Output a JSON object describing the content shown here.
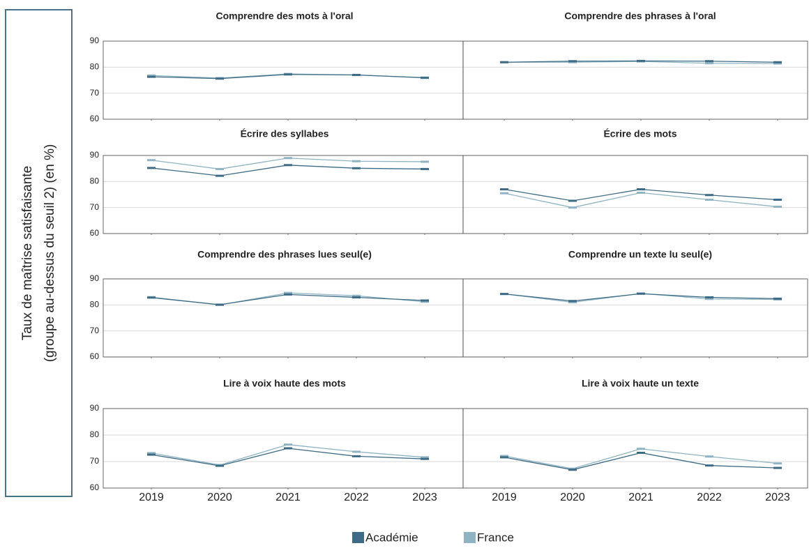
{
  "ylabel": [
    "Taux de maîtrise satisfaisante",
    "(groupe au-dessus du seuil 2) (en %)"
  ],
  "chart_data": [
    {
      "type": "line",
      "title": "Comprendre des mots à l'oral",
      "categories": [
        "2019",
        "2020",
        "2021",
        "2022",
        "2023"
      ],
      "ylim": [
        60,
        90
      ],
      "yticks": [
        60,
        70,
        80,
        90
      ],
      "series": [
        {
          "name": "Académie",
          "color": "#3d6b85",
          "values": [
            76.3,
            75.6,
            77.2,
            77.0,
            75.9
          ]
        },
        {
          "name": "France",
          "color": "#8fb3c2",
          "values": [
            76.8,
            75.8,
            77.4,
            77.0,
            76.0
          ]
        }
      ]
    },
    {
      "type": "line",
      "title": "Comprendre des phrases à l'oral",
      "categories": [
        "2019",
        "2020",
        "2021",
        "2022",
        "2023"
      ],
      "ylim": [
        60,
        90
      ],
      "yticks": [
        60,
        70,
        80,
        90
      ],
      "series": [
        {
          "name": "Académie",
          "color": "#3d6b85",
          "values": [
            81.9,
            82.3,
            82.4,
            82.3,
            81.9
          ]
        },
        {
          "name": "France",
          "color": "#8fb3c2",
          "values": [
            81.9,
            81.9,
            82.2,
            81.5,
            81.4
          ]
        }
      ]
    },
    {
      "type": "line",
      "title": "Écrire des syllabes",
      "categories": [
        "2019",
        "2020",
        "2021",
        "2022",
        "2023"
      ],
      "ylim": [
        60,
        90
      ],
      "yticks": [
        60,
        70,
        80,
        90
      ],
      "series": [
        {
          "name": "Académie",
          "color": "#3d6b85",
          "values": [
            85.2,
            82.2,
            86.3,
            85.1,
            84.8
          ]
        },
        {
          "name": "France",
          "color": "#8fb3c2",
          "values": [
            88.2,
            84.8,
            89.0,
            87.8,
            87.6
          ]
        }
      ]
    },
    {
      "type": "line",
      "title": "Écrire des mots",
      "categories": [
        "2019",
        "2020",
        "2021",
        "2022",
        "2023"
      ],
      "ylim": [
        60,
        90
      ],
      "yticks": [
        60,
        70,
        80,
        90
      ],
      "series": [
        {
          "name": "Académie",
          "color": "#3d6b85",
          "values": [
            77.0,
            72.6,
            77.0,
            74.8,
            73.0
          ]
        },
        {
          "name": "France",
          "color": "#8fb3c2",
          "values": [
            75.5,
            70.0,
            75.7,
            73.0,
            70.3
          ]
        }
      ]
    },
    {
      "type": "line",
      "title": "Comprendre des phrases lues seul(e)",
      "categories": [
        "2019",
        "2020",
        "2021",
        "2022",
        "2023"
      ],
      "ylim": [
        60,
        90
      ],
      "yticks": [
        60,
        70,
        80,
        90
      ],
      "series": [
        {
          "name": "Académie",
          "color": "#3d6b85",
          "values": [
            82.8,
            80.1,
            84.0,
            82.9,
            81.7
          ]
        },
        {
          "name": "France",
          "color": "#8fb3c2",
          "values": [
            83.0,
            80.0,
            84.6,
            83.5,
            81.2
          ]
        }
      ]
    },
    {
      "type": "line",
      "title": "Comprendre un texte lu seul(e)",
      "categories": [
        "2019",
        "2020",
        "2021",
        "2022",
        "2023"
      ],
      "ylim": [
        60,
        90
      ],
      "yticks": [
        60,
        70,
        80,
        90
      ],
      "series": [
        {
          "name": "Académie",
          "color": "#3d6b85",
          "values": [
            84.2,
            81.5,
            84.3,
            82.9,
            82.4
          ]
        },
        {
          "name": "France",
          "color": "#8fb3c2",
          "values": [
            84.2,
            81.0,
            84.4,
            82.3,
            82.1
          ]
        }
      ]
    },
    {
      "type": "line",
      "title": "Lire à voix haute des mots",
      "categories": [
        "2019",
        "2020",
        "2021",
        "2022",
        "2023"
      ],
      "ylim": [
        60,
        90
      ],
      "yticks": [
        60,
        70,
        80,
        90
      ],
      "series": [
        {
          "name": "Académie",
          "color": "#3d6b85",
          "values": [
            72.6,
            68.4,
            75.0,
            72.0,
            71.0
          ]
        },
        {
          "name": "France",
          "color": "#8fb3c2",
          "values": [
            73.2,
            68.7,
            76.4,
            73.7,
            71.6
          ]
        }
      ]
    },
    {
      "type": "line",
      "title": "Lire à voix haute un texte",
      "categories": [
        "2019",
        "2020",
        "2021",
        "2022",
        "2023"
      ],
      "ylim": [
        60,
        90
      ],
      "yticks": [
        60,
        70,
        80,
        90
      ],
      "series": [
        {
          "name": "Académie",
          "color": "#3d6b85",
          "values": [
            71.6,
            66.9,
            73.3,
            68.5,
            67.6
          ]
        },
        {
          "name": "France",
          "color": "#8fb3c2",
          "values": [
            72.1,
            67.3,
            74.8,
            71.9,
            69.3
          ]
        }
      ]
    }
  ]
}
